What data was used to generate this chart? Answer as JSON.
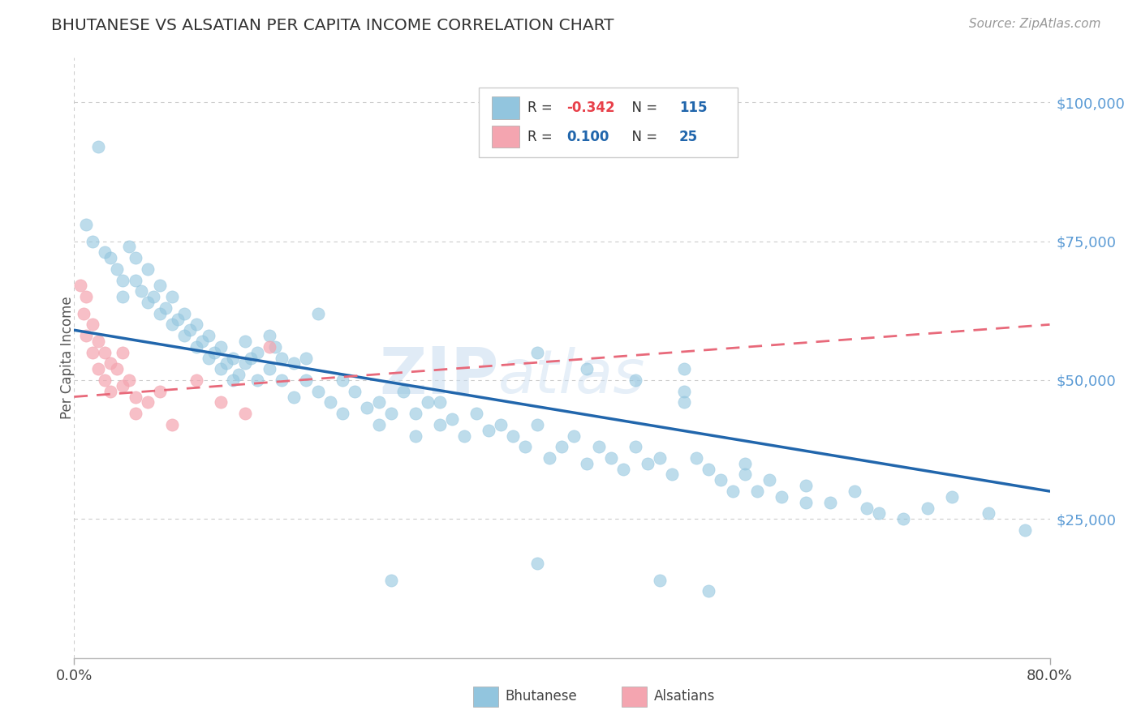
{
  "title": "BHUTANESE VS ALSATIAN PER CAPITA INCOME CORRELATION CHART",
  "source": "Source: ZipAtlas.com",
  "ylabel": "Per Capita Income",
  "ytick_labels": [
    "",
    "$25,000",
    "$50,000",
    "$75,000",
    "$100,000"
  ],
  "xlim": [
    0.0,
    0.8
  ],
  "ylim": [
    0,
    108000
  ],
  "watermark_zip": "ZIP",
  "watermark_atlas": "atlas",
  "blue_color": "#92C5DE",
  "pink_color": "#F4A5B0",
  "trend_blue": "#2166AC",
  "trend_pink": "#E8697A",
  "axis_color": "#BBBBBB",
  "ytick_color": "#5B9BD5",
  "title_color": "#333333",
  "source_color": "#999999",
  "blue_dots_x": [
    0.02,
    0.01,
    0.015,
    0.025,
    0.03,
    0.035,
    0.04,
    0.04,
    0.045,
    0.05,
    0.05,
    0.055,
    0.06,
    0.06,
    0.065,
    0.07,
    0.07,
    0.075,
    0.08,
    0.08,
    0.085,
    0.09,
    0.09,
    0.095,
    0.1,
    0.1,
    0.105,
    0.11,
    0.11,
    0.115,
    0.12,
    0.12,
    0.125,
    0.13,
    0.13,
    0.135,
    0.14,
    0.14,
    0.145,
    0.15,
    0.15,
    0.16,
    0.16,
    0.165,
    0.17,
    0.17,
    0.18,
    0.18,
    0.19,
    0.19,
    0.2,
    0.2,
    0.21,
    0.22,
    0.22,
    0.23,
    0.24,
    0.25,
    0.25,
    0.26,
    0.27,
    0.28,
    0.28,
    0.29,
    0.3,
    0.3,
    0.31,
    0.32,
    0.33,
    0.34,
    0.35,
    0.36,
    0.37,
    0.38,
    0.39,
    0.4,
    0.41,
    0.42,
    0.43,
    0.44,
    0.45,
    0.46,
    0.47,
    0.48,
    0.49,
    0.5,
    0.5,
    0.51,
    0.52,
    0.53,
    0.54,
    0.55,
    0.56,
    0.57,
    0.58,
    0.6,
    0.62,
    0.64,
    0.65,
    0.66,
    0.38,
    0.42,
    0.46,
    0.5,
    0.55,
    0.6,
    0.68,
    0.7,
    0.72,
    0.75,
    0.78,
    0.48,
    0.52,
    0.38,
    0.26
  ],
  "blue_dots_y": [
    92000,
    78000,
    75000,
    73000,
    72000,
    70000,
    68000,
    65000,
    74000,
    72000,
    68000,
    66000,
    64000,
    70000,
    65000,
    62000,
    67000,
    63000,
    60000,
    65000,
    61000,
    58000,
    62000,
    59000,
    56000,
    60000,
    57000,
    54000,
    58000,
    55000,
    52000,
    56000,
    53000,
    50000,
    54000,
    51000,
    53000,
    57000,
    54000,
    50000,
    55000,
    58000,
    52000,
    56000,
    54000,
    50000,
    53000,
    47000,
    50000,
    54000,
    62000,
    48000,
    46000,
    50000,
    44000,
    48000,
    45000,
    46000,
    42000,
    44000,
    48000,
    44000,
    40000,
    46000,
    42000,
    46000,
    43000,
    40000,
    44000,
    41000,
    42000,
    40000,
    38000,
    42000,
    36000,
    38000,
    40000,
    35000,
    38000,
    36000,
    34000,
    38000,
    35000,
    36000,
    33000,
    52000,
    48000,
    36000,
    34000,
    32000,
    30000,
    35000,
    30000,
    32000,
    29000,
    31000,
    28000,
    30000,
    27000,
    26000,
    55000,
    52000,
    50000,
    46000,
    33000,
    28000,
    25000,
    27000,
    29000,
    26000,
    23000,
    14000,
    12000,
    17000,
    14000
  ],
  "pink_dots_x": [
    0.005,
    0.008,
    0.01,
    0.01,
    0.015,
    0.015,
    0.02,
    0.02,
    0.025,
    0.025,
    0.03,
    0.03,
    0.035,
    0.04,
    0.04,
    0.045,
    0.05,
    0.05,
    0.06,
    0.07,
    0.08,
    0.1,
    0.12,
    0.14,
    0.16
  ],
  "pink_dots_y": [
    67000,
    62000,
    65000,
    58000,
    55000,
    60000,
    57000,
    52000,
    55000,
    50000,
    53000,
    48000,
    52000,
    49000,
    55000,
    50000,
    47000,
    44000,
    46000,
    48000,
    42000,
    50000,
    46000,
    44000,
    56000
  ],
  "blue_trend_x0": 0.0,
  "blue_trend_x1": 0.8,
  "blue_trend_y0": 59000,
  "blue_trend_y1": 30000,
  "pink_trend_x0": 0.0,
  "pink_trend_x1": 0.8,
  "pink_trend_y0": 47000,
  "pink_trend_y1": 60000
}
